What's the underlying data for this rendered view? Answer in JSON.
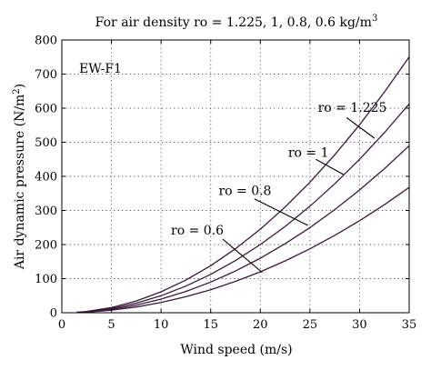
{
  "chart_data": {
    "type": "line",
    "title": "For air density ro = 1.225, 1, 0.8, 0.6 kg/m",
    "title_superscript": "3",
    "xlabel": "Wind speed (m/s)",
    "ylabel": "Air dynamic pressure (N/m",
    "ylabel_superscript": "2",
    "ylabel_suffix": ")",
    "xlim": [
      0,
      35
    ],
    "ylim": [
      0,
      800
    ],
    "xticks": [
      0,
      5,
      10,
      15,
      20,
      25,
      30,
      35
    ],
    "yticks": [
      0,
      100,
      200,
      300,
      400,
      500,
      600,
      700,
      800
    ],
    "grid": true,
    "tag": "EW-F1",
    "line_color": "#3a1a3a",
    "x": [
      1.5,
      2.5,
      5,
      7.5,
      10,
      12.5,
      15,
      17.5,
      20,
      22.5,
      25,
      27.5,
      30,
      32.5,
      35
    ],
    "series": [
      {
        "name": "ro = 1.225",
        "values": [
          1.4,
          3.8,
          15.3,
          34.5,
          61.3,
          95.7,
          137.8,
          187.6,
          245.0,
          310.1,
          382.8,
          463.2,
          551.3,
          647.0,
          750.3
        ]
      },
      {
        "name": "ro = 1",
        "values": [
          1.1,
          3.1,
          12.5,
          28.1,
          50.0,
          78.1,
          112.5,
          153.1,
          200.0,
          253.1,
          312.5,
          378.1,
          450.0,
          528.1,
          612.5
        ]
      },
      {
        "name": "ro = 0.8",
        "values": [
          0.9,
          2.5,
          10.0,
          22.5,
          40.0,
          62.5,
          90.0,
          122.5,
          160.0,
          202.5,
          250.0,
          302.5,
          360.0,
          422.5,
          490.0
        ]
      },
      {
        "name": "ro = 0.6",
        "values": [
          0.7,
          1.9,
          7.5,
          16.9,
          30.0,
          46.9,
          67.5,
          91.9,
          120.0,
          151.9,
          187.5,
          226.9,
          270.0,
          316.9,
          367.5
        ]
      }
    ],
    "annotations": [
      {
        "text": "ro = 1.225",
        "label_at": [
          25.8,
          590
        ],
        "text_anchor": "start",
        "arrow_from": [
          28.7,
          572
        ],
        "arrow_to": [
          31.5,
          512
        ]
      },
      {
        "text": "ro = 1",
        "label_at": [
          22.8,
          458
        ],
        "text_anchor": "start",
        "arrow_from": [
          25.6,
          450
        ],
        "arrow_to": [
          28.4,
          405
        ]
      },
      {
        "text": "ro = 0.8",
        "label_at": [
          15.8,
          345
        ],
        "text_anchor": "start",
        "arrow_from": [
          19.4,
          334
        ],
        "arrow_to": [
          24.8,
          256
        ]
      },
      {
        "text": "ro = 0.6",
        "label_at": [
          11.0,
          230
        ],
        "text_anchor": "start",
        "arrow_from": [
          16.2,
          216
        ],
        "arrow_to": [
          20.2,
          118
        ]
      }
    ]
  }
}
